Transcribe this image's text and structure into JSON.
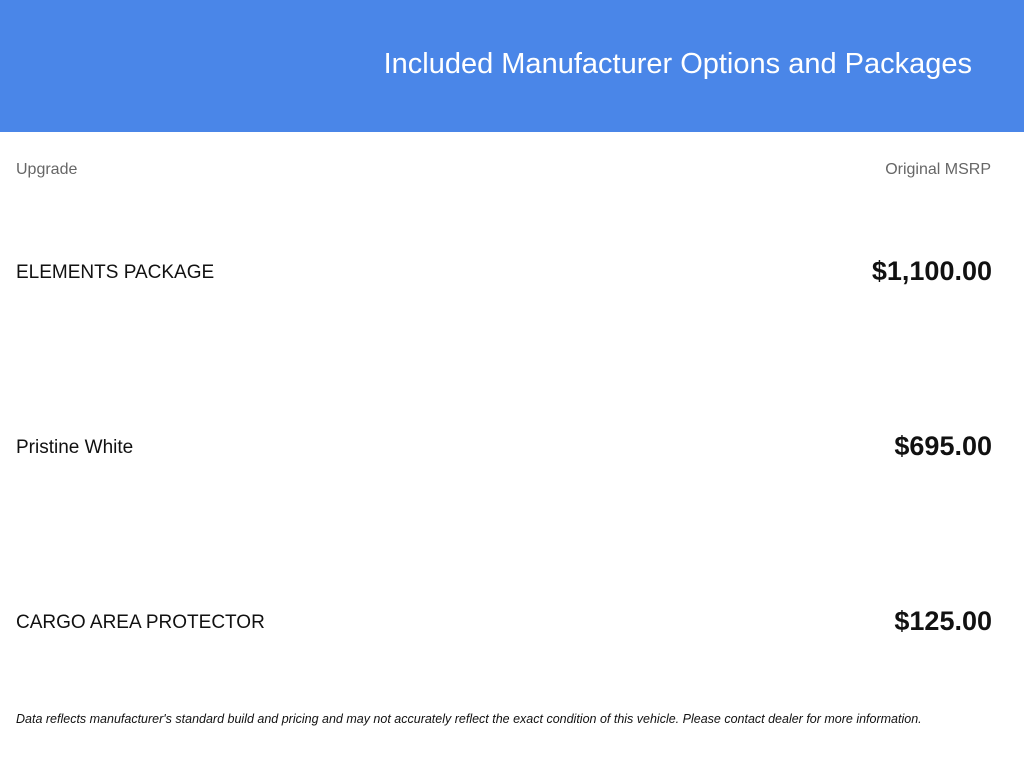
{
  "header": {
    "title": "Included Manufacturer Options and Packages",
    "background": "#4a86e8"
  },
  "table": {
    "columns": {
      "upgrade": "Upgrade",
      "msrp": "Original MSRP"
    },
    "rows": [
      {
        "name": "ELEMENTS PACKAGE",
        "price": "$1,100.00"
      },
      {
        "name": "Pristine White",
        "price": "$695.00"
      },
      {
        "name": "CARGO AREA PROTECTOR",
        "price": "$125.00"
      }
    ]
  },
  "footer": {
    "disclaimer": "Data reflects manufacturer's standard build and pricing and may not accurately reflect the exact condition of this vehicle. Please contact dealer for more information."
  }
}
